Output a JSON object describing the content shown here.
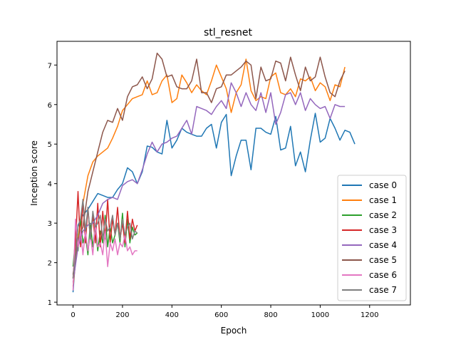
{
  "chart_data": {
    "type": "line",
    "title": "stl_resnet",
    "xlabel": "Epoch",
    "ylabel": "Inception score",
    "xlim": [
      -65,
      1365
    ],
    "ylim": [
      0.93,
      7.6
    ],
    "xticks": [
      0,
      200,
      400,
      600,
      800,
      1000,
      1200
    ],
    "yticks": [
      1,
      2,
      3,
      4,
      5,
      6,
      7
    ],
    "grid": false,
    "legend": "lower right",
    "series": [
      {
        "name": "case 0",
        "color": "#1f77b4",
        "x": [
          0,
          20,
          40,
          60,
          80,
          100,
          120,
          140,
          160,
          180,
          200,
          220,
          240,
          260,
          280,
          300,
          320,
          340,
          360,
          380,
          400,
          420,
          440,
          460,
          480,
          500,
          520,
          540,
          560,
          580,
          600,
          620,
          640,
          660,
          680,
          700,
          720,
          740,
          760,
          780,
          800,
          820,
          840,
          860,
          880,
          900,
          920,
          940,
          960,
          980,
          1000,
          1020,
          1040,
          1060,
          1080,
          1100,
          1120,
          1140,
          1160,
          1180,
          1200,
          1220,
          1240,
          1260,
          1280,
          1300
        ],
        "y": [
          1.25,
          2.95,
          3.2,
          3.35,
          3.55,
          3.75,
          3.7,
          3.65,
          3.65,
          3.85,
          4.0,
          4.4,
          4.3,
          4.0,
          4.3,
          4.95,
          4.92,
          4.8,
          4.75,
          5.6,
          4.9,
          5.1,
          5.4,
          5.3,
          5.25,
          5.2,
          5.2,
          5.4,
          5.5,
          4.9,
          5.55,
          5.75,
          4.2,
          4.7,
          5.1,
          5.1,
          4.35,
          5.4,
          5.4,
          5.3,
          5.25,
          5.7,
          4.85,
          4.9,
          5.45,
          4.45,
          4.8,
          4.3,
          5.1,
          5.78,
          5.05,
          5.15,
          5.65,
          5.4,
          5.1,
          5.35,
          5.3,
          5.0,
          null,
          null,
          null,
          null,
          null,
          null,
          null,
          null
        ]
      },
      {
        "name": "case 1",
        "color": "#ff7f0e",
        "x": [
          0,
          20,
          40,
          60,
          80,
          100,
          120,
          140,
          160,
          180,
          200,
          220,
          240,
          260,
          280,
          300,
          320,
          340,
          360,
          380,
          400,
          420,
          440,
          460,
          480,
          500,
          520,
          540,
          560,
          580,
          600,
          620,
          640,
          660,
          680,
          700,
          720,
          740,
          760,
          780,
          800,
          820,
          840,
          860,
          880,
          900,
          920,
          940,
          960,
          980,
          1000,
          1020,
          1040,
          1060,
          1080,
          1100,
          1120,
          1140,
          1160,
          1180,
          1200,
          1220,
          1240,
          1260,
          1280,
          1300
        ],
        "y": [
          1.4,
          2.6,
          3.5,
          4.2,
          4.55,
          4.7,
          4.8,
          4.9,
          5.15,
          5.45,
          5.85,
          6.0,
          6.15,
          6.2,
          6.25,
          6.6,
          6.25,
          6.3,
          6.6,
          6.75,
          6.05,
          6.15,
          6.75,
          6.55,
          6.3,
          6.5,
          6.35,
          6.25,
          6.6,
          7.0,
          6.7,
          6.4,
          5.8,
          6.3,
          6.5,
          7.15,
          6.35,
          6.1,
          6.2,
          6.15,
          6.7,
          6.8,
          6.3,
          6.25,
          6.4,
          6.2,
          6.65,
          6.6,
          6.7,
          6.35,
          6.55,
          6.45,
          6.1,
          6.5,
          6.45,
          6.95,
          null,
          null,
          null,
          null,
          null,
          null,
          null,
          null,
          null,
          null
        ]
      },
      {
        "name": "case 2",
        "color": "#2ca02c",
        "x": [
          0,
          10,
          20,
          30,
          40,
          50,
          60,
          70,
          80,
          90,
          100,
          110,
          120,
          130,
          140,
          150,
          160,
          170,
          180,
          190,
          200,
          210,
          220,
          230,
          240,
          250,
          260
        ],
        "y": [
          1.9,
          2.6,
          2.3,
          3.1,
          2.5,
          2.7,
          2.2,
          3.0,
          2.4,
          2.9,
          2.3,
          2.8,
          2.5,
          3.2,
          2.4,
          2.9,
          2.5,
          2.7,
          3.0,
          2.5,
          3.25,
          2.4,
          3.1,
          2.5,
          2.9,
          2.7,
          2.75
        ]
      },
      {
        "name": "case 3",
        "color": "#d62728",
        "x": [
          0,
          10,
          20,
          30,
          40,
          50,
          60,
          70,
          80,
          90,
          100,
          110,
          120,
          130,
          140,
          150,
          160,
          170,
          180,
          190,
          200,
          210,
          220,
          230,
          240,
          250,
          260
        ],
        "y": [
          1.6,
          2.5,
          3.8,
          2.4,
          3.6,
          2.5,
          3.4,
          2.6,
          3.2,
          2.5,
          3.5,
          2.4,
          3.3,
          2.6,
          3.6,
          2.5,
          3.1,
          2.7,
          3.4,
          2.6,
          3.0,
          2.5,
          3.3,
          2.6,
          3.1,
          2.8,
          2.95
        ]
      },
      {
        "name": "case 4",
        "color": "#9467bd",
        "x": [
          0,
          20,
          40,
          60,
          80,
          100,
          120,
          140,
          160,
          180,
          200,
          220,
          240,
          260,
          280,
          300,
          320,
          340,
          360,
          380,
          400,
          420,
          440,
          460,
          480,
          500,
          520,
          540,
          560,
          580,
          600,
          620,
          640,
          660,
          680,
          700,
          720,
          740,
          760,
          780,
          800,
          820,
          840,
          860,
          880,
          900,
          920,
          940,
          960,
          980,
          1000,
          1020,
          1040,
          1060,
          1080,
          1100,
          1120,
          1140,
          1160,
          1180,
          1200,
          1220,
          1240,
          1260,
          1280,
          1300
        ],
        "y": [
          1.5,
          2.4,
          2.8,
          2.95,
          3.0,
          3.2,
          3.5,
          3.6,
          3.65,
          3.6,
          3.95,
          4.05,
          4.1,
          4.0,
          4.35,
          4.75,
          5.05,
          4.8,
          5.0,
          5.05,
          5.15,
          5.2,
          5.4,
          5.6,
          5.25,
          5.95,
          5.9,
          5.85,
          5.75,
          5.95,
          6.1,
          5.9,
          6.55,
          6.3,
          5.95,
          6.3,
          6.0,
          5.85,
          6.3,
          5.8,
          6.3,
          5.5,
          5.8,
          6.25,
          6.3,
          6.0,
          6.3,
          5.85,
          6.15,
          6.0,
          5.9,
          5.95,
          5.65,
          6.0,
          5.95,
          5.95,
          null,
          null,
          null,
          null,
          null,
          null,
          null,
          null,
          null,
          null
        ]
      },
      {
        "name": "case 5",
        "color": "#8c564b",
        "x": [
          0,
          20,
          40,
          60,
          80,
          100,
          120,
          140,
          160,
          180,
          200,
          220,
          240,
          260,
          280,
          300,
          320,
          340,
          360,
          380,
          400,
          420,
          440,
          460,
          480,
          500,
          520,
          540,
          560,
          580,
          600,
          620,
          640,
          660,
          680,
          700,
          720,
          740,
          760,
          780,
          800,
          820,
          840,
          860,
          880,
          900,
          920,
          940,
          960,
          980,
          1000,
          1020,
          1040,
          1060,
          1080,
          1100,
          1120,
          1140,
          1160,
          1180,
          1200,
          1220,
          1240,
          1260,
          1280,
          1300
        ],
        "y": [
          1.7,
          2.6,
          2.9,
          3.8,
          4.3,
          4.8,
          5.3,
          5.6,
          5.55,
          5.9,
          5.6,
          6.2,
          6.45,
          6.5,
          6.7,
          6.4,
          6.65,
          7.3,
          7.15,
          6.7,
          6.75,
          6.45,
          6.4,
          6.4,
          6.6,
          7.15,
          6.3,
          6.3,
          6.05,
          6.4,
          6.45,
          6.75,
          6.75,
          6.85,
          6.95,
          7.1,
          7.0,
          6.15,
          6.95,
          6.6,
          6.65,
          7.1,
          7.05,
          6.6,
          7.2,
          6.75,
          6.35,
          6.95,
          6.6,
          6.7,
          7.2,
          6.7,
          6.3,
          6.2,
          6.6,
          6.85,
          null,
          null,
          null,
          null,
          null,
          null,
          null,
          null,
          null,
          null
        ]
      },
      {
        "name": "case 6",
        "color": "#e377c2",
        "x": [
          0,
          10,
          20,
          30,
          40,
          50,
          60,
          70,
          80,
          90,
          100,
          110,
          120,
          130,
          140,
          150,
          160,
          170,
          180,
          190,
          200,
          210,
          220,
          230,
          240,
          250,
          260
        ],
        "y": [
          1.3,
          3.1,
          2.4,
          2.8,
          2.2,
          2.8,
          2.3,
          2.7,
          2.2,
          3.0,
          2.4,
          2.5,
          2.2,
          2.8,
          1.9,
          2.5,
          2.3,
          2.6,
          2.2,
          2.5,
          2.4,
          2.7,
          2.3,
          2.4,
          2.2,
          2.3,
          2.3
        ]
      },
      {
        "name": "case 7",
        "color": "#7f7f7f",
        "x": [
          0,
          10,
          20,
          30,
          40,
          50,
          60,
          70,
          80,
          90,
          100,
          110,
          120,
          130,
          140,
          150,
          160,
          170,
          180,
          190,
          200,
          210,
          220,
          230,
          240,
          250,
          260
        ],
        "y": [
          1.6,
          2.2,
          2.9,
          3.1,
          3.6,
          2.8,
          3.4,
          2.6,
          3.3,
          2.9,
          3.0,
          3.2,
          2.6,
          3.1,
          2.8,
          2.9,
          3.2,
          2.7,
          3.0,
          2.6,
          3.1,
          2.7,
          2.9,
          3.0,
          2.6,
          2.8,
          2.75
        ]
      }
    ]
  }
}
